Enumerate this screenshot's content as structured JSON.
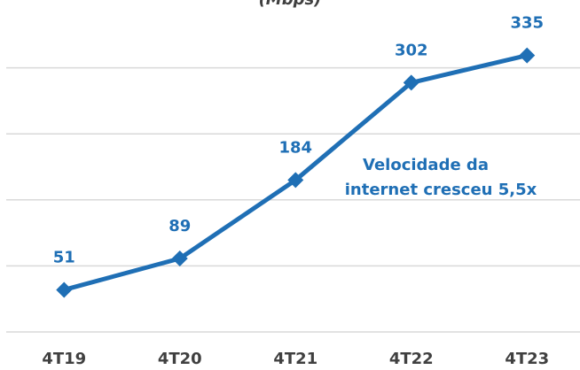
{
  "chart_data": {
    "type": "line",
    "subtitle": "(Mbps)",
    "categories": [
      "4T19",
      "4T20",
      "4T21",
      "4T22",
      "4T23"
    ],
    "series": [
      {
        "name": "Velocidade",
        "color": "#1f6fb5",
        "values": [
          51,
          89,
          184,
          302,
          335
        ]
      }
    ],
    "annotation": [
      "Velocidade da",
      "internet cresceu 5,5x"
    ],
    "ylim": [
      0,
      400
    ],
    "yticks": [
      0,
      80,
      160,
      240,
      320
    ],
    "grid": true
  }
}
